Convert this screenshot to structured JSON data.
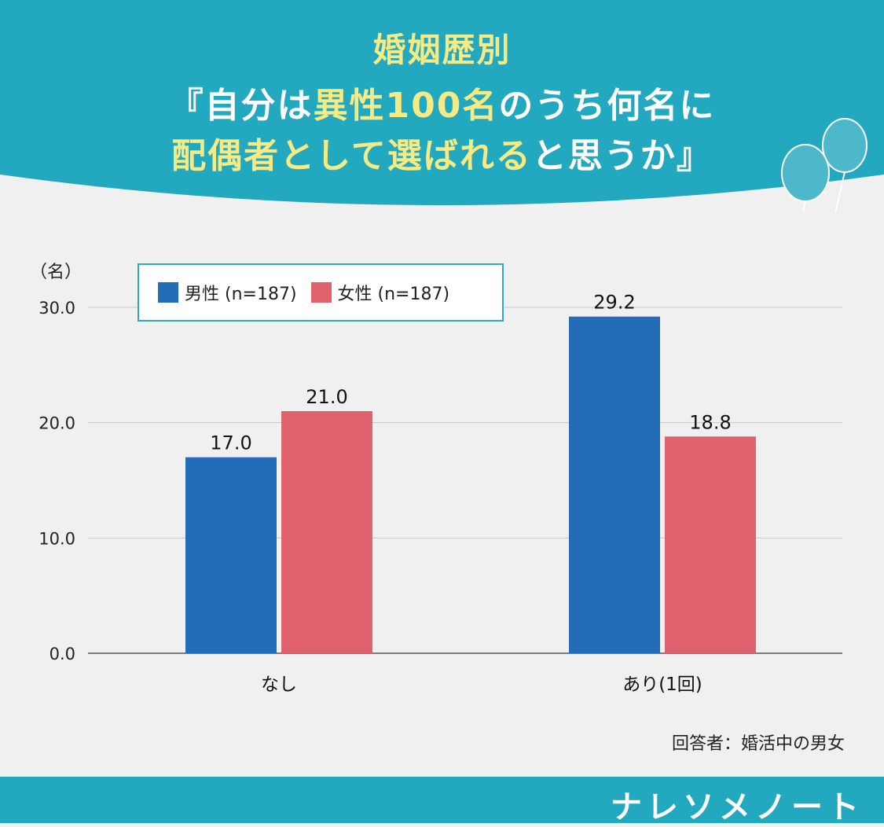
{
  "title": {
    "line1": "婚姻歴別",
    "line2_a": "『自分は",
    "line2_highlight": "異性100名",
    "line2_b": "のうち何名に",
    "line3_highlight": "配偶者として選ばれる",
    "line3_b": "と思うか』"
  },
  "colors": {
    "teal": "#23a9bf",
    "male": "#236cb7",
    "female": "#de616d",
    "title_yellow": "#f5ea84"
  },
  "chart_data": {
    "type": "bar",
    "unit": "（名）",
    "categories": [
      "なし",
      "あり(1回)"
    ],
    "series": [
      {
        "name": "男性 (n=187)",
        "values": [
          17.0,
          29.2
        ],
        "labels": [
          "17.0",
          "29.2"
        ]
      },
      {
        "name": "女性 (n=187)",
        "values": [
          21.0,
          18.8
        ],
        "labels": [
          "21.0",
          "18.8"
        ]
      }
    ],
    "y_ticks": [
      "0.0",
      "10.0",
      "20.0",
      "30.0"
    ],
    "ylim": [
      0,
      30
    ],
    "grid": true,
    "legend_position": "top-left"
  },
  "respondent": "回答者：婚活中の男女",
  "brand": "ナレソメノート"
}
